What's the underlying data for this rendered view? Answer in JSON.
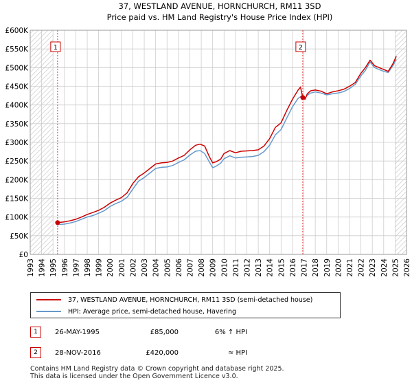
{
  "chart_data": {
    "type": "line",
    "title": "37, WESTLAND AVENUE, HORNCHURCH, RM11 3SD",
    "subtitle": "Price paid vs. HM Land Registry's House Price Index (HPI)",
    "xlim": [
      1993,
      2026
    ],
    "ylim": [
      0,
      600000
    ],
    "x_ticks": [
      "1993",
      "1994",
      "1995",
      "1996",
      "1997",
      "1998",
      "1999",
      "2000",
      "2001",
      "2002",
      "2003",
      "2004",
      "2005",
      "2006",
      "2007",
      "2008",
      "2009",
      "2010",
      "2011",
      "2012",
      "2013",
      "2014",
      "2015",
      "2016",
      "2017",
      "2018",
      "2019",
      "2020",
      "2021",
      "2022",
      "2023",
      "2024",
      "2025",
      "2026"
    ],
    "y_ticks": [
      {
        "value": 0,
        "label": "£0"
      },
      {
        "value": 50000,
        "label": "£50K"
      },
      {
        "value": 100000,
        "label": "£100K"
      },
      {
        "value": 150000,
        "label": "£150K"
      },
      {
        "value": 200000,
        "label": "£200K"
      },
      {
        "value": 250000,
        "label": "£250K"
      },
      {
        "value": 300000,
        "label": "£300K"
      },
      {
        "value": 350000,
        "label": "£350K"
      },
      {
        "value": 400000,
        "label": "£400K"
      },
      {
        "value": 450000,
        "label": "£450K"
      },
      {
        "value": 500000,
        "label": "£500K"
      },
      {
        "value": 550000,
        "label": "£550K"
      },
      {
        "value": 600000,
        "label": "£600K"
      }
    ],
    "hatch_before": 1995.0,
    "hatch_after": 2025.0,
    "series": [
      {
        "name": "37, WESTLAND AVENUE, HORNCHURCH, RM11 3SD (semi-detached house)",
        "color": "#cc0000",
        "x": [
          1995.4,
          1996.0,
          1996.5,
          1997.0,
          1997.5,
          1998.0,
          1998.5,
          1999.0,
          1999.5,
          2000.0,
          2000.5,
          2001.0,
          2001.5,
          2002.0,
          2002.5,
          2003.0,
          2003.5,
          2004.0,
          2004.5,
          2005.0,
          2005.5,
          2006.0,
          2006.5,
          2007.0,
          2007.5,
          2007.9,
          2008.3,
          2008.7,
          2009.0,
          2009.3,
          2009.7,
          2010.0,
          2010.5,
          2011.0,
          2011.5,
          2012.0,
          2012.5,
          2013.0,
          2013.5,
          2014.0,
          2014.5,
          2015.0,
          2015.5,
          2016.0,
          2016.5,
          2016.7,
          2016.9,
          2017.1,
          2017.3,
          2017.6,
          2018.0,
          2018.5,
          2019.0,
          2019.5,
          2020.0,
          2020.5,
          2021.0,
          2021.5,
          2022.0,
          2022.4,
          2022.8,
          2023.2,
          2023.6,
          2024.0,
          2024.4,
          2024.8,
          2025.1
        ],
        "values": [
          85000,
          87000,
          90000,
          94000,
          100000,
          107000,
          112000,
          118000,
          126000,
          137000,
          145000,
          152000,
          165000,
          190000,
          208000,
          218000,
          230000,
          242000,
          245000,
          246000,
          250000,
          258000,
          265000,
          280000,
          292000,
          295000,
          290000,
          262000,
          245000,
          248000,
          255000,
          270000,
          278000,
          272000,
          276000,
          277000,
          278000,
          280000,
          290000,
          310000,
          340000,
          352000,
          385000,
          415000,
          440000,
          448000,
          420000,
          415000,
          430000,
          438000,
          440000,
          437000,
          430000,
          435000,
          438000,
          442000,
          450000,
          460000,
          485000,
          500000,
          520000,
          505000,
          500000,
          495000,
          490000,
          510000,
          530000
        ]
      },
      {
        "name": "HPI: Average price, semi-detached house, Havering",
        "color": "#6699cc",
        "x": [
          1995.4,
          1996.0,
          1996.5,
          1997.0,
          1997.5,
          1998.0,
          1998.5,
          1999.0,
          1999.5,
          2000.0,
          2000.5,
          2001.0,
          2001.5,
          2002.0,
          2002.5,
          2003.0,
          2003.5,
          2004.0,
          2004.5,
          2005.0,
          2005.5,
          2006.0,
          2006.5,
          2007.0,
          2007.5,
          2007.9,
          2008.3,
          2008.7,
          2009.0,
          2009.3,
          2009.7,
          2010.0,
          2010.5,
          2011.0,
          2011.5,
          2012.0,
          2012.5,
          2013.0,
          2013.5,
          2014.0,
          2014.5,
          2015.0,
          2015.5,
          2016.0,
          2016.5,
          2016.7,
          2016.9,
          2017.1,
          2017.3,
          2017.6,
          2018.0,
          2018.5,
          2019.0,
          2019.5,
          2020.0,
          2020.5,
          2021.0,
          2021.5,
          2022.0,
          2022.4,
          2022.8,
          2023.2,
          2023.6,
          2024.0,
          2024.4,
          2024.8,
          2025.1
        ],
        "values": [
          80000,
          81000,
          84000,
          88000,
          94000,
          100000,
          104000,
          110000,
          117000,
          128000,
          136000,
          142000,
          153000,
          175000,
          196000,
          206000,
          218000,
          230000,
          233000,
          234000,
          238000,
          246000,
          253000,
          266000,
          276000,
          278000,
          270000,
          248000,
          232000,
          236000,
          244000,
          256000,
          264000,
          258000,
          260000,
          261000,
          262000,
          265000,
          275000,
          292000,
          320000,
          334000,
          365000,
          395000,
          418000,
          422000,
          418000,
          418000,
          426000,
          432000,
          435000,
          432000,
          427000,
          430000,
          432000,
          436000,
          444000,
          455000,
          478000,
          493000,
          515000,
          500000,
          495000,
          490000,
          487000,
          505000,
          522000
        ]
      }
    ],
    "sales": [
      {
        "id": "1",
        "x": 1995.4,
        "value": 85000
      },
      {
        "id": "2",
        "x": 2016.9,
        "value": 420000
      }
    ]
  },
  "legend": {
    "red_label": "37, WESTLAND AVENUE, HORNCHURCH, RM11 3SD (semi-detached house)",
    "blue_label": "HPI: Average price, semi-detached house, Havering",
    "red_color": "#cc0000",
    "blue_color": "#6699cc"
  },
  "sales_table": [
    {
      "num": "1",
      "date": "26-MAY-1995",
      "price": "£85,000",
      "hpi": "6% ↑ HPI"
    },
    {
      "num": "2",
      "date": "28-NOV-2016",
      "price": "£420,000",
      "hpi": "≈ HPI"
    }
  ],
  "footer": {
    "line1": "Contains HM Land Registry data © Crown copyright and database right 2025.",
    "line2": "This data is licensed under the Open Government Licence v3.0."
  }
}
